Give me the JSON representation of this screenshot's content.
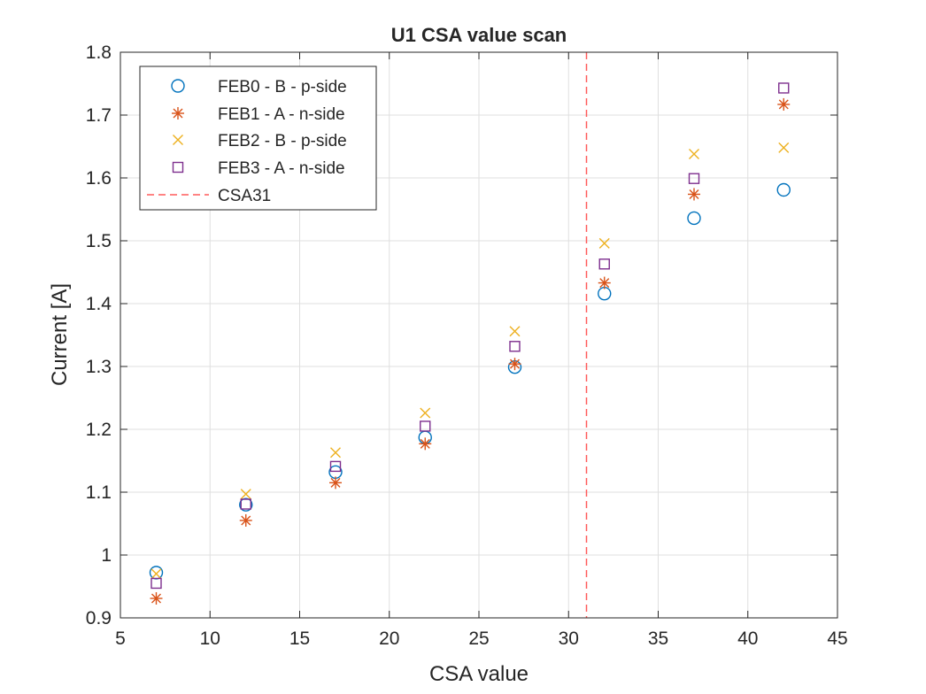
{
  "chart_data": {
    "type": "scatter",
    "title": "U1 CSA value scan",
    "xlabel": "CSA value",
    "ylabel": "Current [A]",
    "xlim": [
      5,
      45
    ],
    "ylim": [
      0.9,
      1.8
    ],
    "xticks": [
      5,
      10,
      15,
      20,
      25,
      30,
      35,
      40,
      45
    ],
    "yticks": [
      0.9,
      1,
      1.1,
      1.2,
      1.3,
      1.4,
      1.5,
      1.6,
      1.7,
      1.8
    ],
    "xtick_labels": [
      "5",
      "10",
      "15",
      "20",
      "25",
      "30",
      "35",
      "40",
      "45"
    ],
    "ytick_labels": [
      "0.9",
      "1",
      "1.1",
      "1.2",
      "1.3",
      "1.4",
      "1.5",
      "1.6",
      "1.7",
      "1.8"
    ],
    "grid": true,
    "legend_position": "top-left",
    "x": [
      7,
      12,
      17,
      22,
      27,
      32,
      37,
      42
    ],
    "series": [
      {
        "name": "FEB0 - B - p-side",
        "marker": "circle",
        "color": "#0072BD",
        "values": [
          0.972,
          1.08,
          1.132,
          1.187,
          1.299,
          1.416,
          1.536,
          1.581
        ]
      },
      {
        "name": "FEB1 - A - n-side",
        "marker": "asterisk",
        "color": "#D95319",
        "values": [
          0.931,
          1.055,
          1.115,
          1.177,
          1.304,
          1.433,
          1.574,
          1.717
        ]
      },
      {
        "name": "FEB2 - B - p-side",
        "marker": "cross",
        "color": "#EDB120",
        "values": [
          0.97,
          1.097,
          1.163,
          1.226,
          1.356,
          1.496,
          1.638,
          1.648
        ]
      },
      {
        "name": "FEB3 - A - n-side",
        "marker": "square",
        "color": "#7E2F8E",
        "values": [
          0.955,
          1.081,
          1.141,
          1.205,
          1.332,
          1.463,
          1.599,
          1.743
        ]
      }
    ],
    "reference_line": {
      "name": "CSA31",
      "x": 31,
      "color": "#FF5A5A",
      "style": "dashed"
    }
  }
}
